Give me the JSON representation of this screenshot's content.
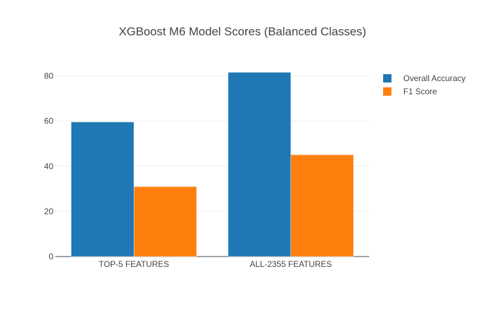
{
  "chart_data": {
    "type": "bar",
    "title": "XGBoost M6 Model Scores (Balanced Classes)",
    "categories": [
      "TOP-5 FEATURES",
      "ALL-2355 FEATURES"
    ],
    "series": [
      {
        "name": "Overall Accuracy",
        "color": "#1f77b4",
        "values": [
          59.6,
          81.6
        ]
      },
      {
        "name": "F1 Score",
        "color": "#ff7f0e",
        "values": [
          31.0,
          45.1
        ]
      }
    ],
    "ylim": [
      0,
      86
    ],
    "yticks": [
      0,
      20,
      40,
      60,
      80
    ],
    "grid": true,
    "legend": "top-right"
  }
}
